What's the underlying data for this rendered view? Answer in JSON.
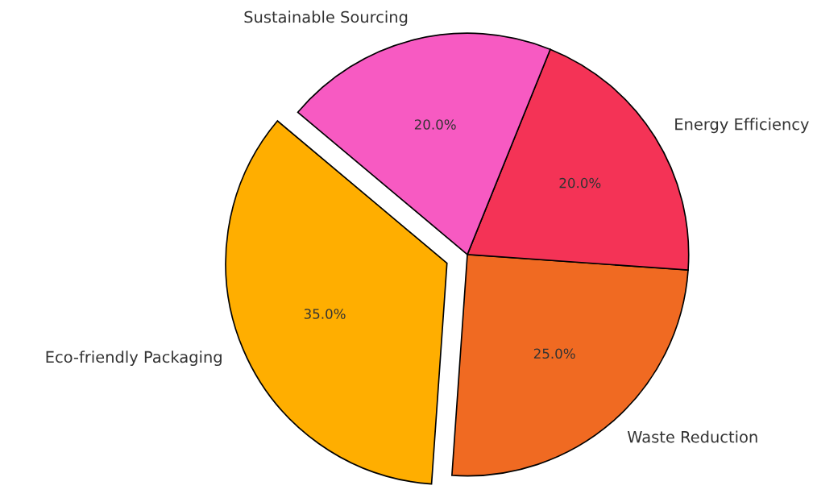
{
  "chart_data": {
    "type": "pie",
    "categories": [
      "Eco-friendly Packaging",
      "Waste Reduction",
      "Energy Efficiency",
      "Sustainable Sourcing"
    ],
    "values": [
      35,
      25,
      20,
      20
    ],
    "value_labels": [
      "35.0%",
      "25.0%",
      "20.0%",
      "20.0%"
    ],
    "colors": [
      "#ffae00",
      "#f06a22",
      "#f43356",
      "#f75ac2"
    ]
  }
}
